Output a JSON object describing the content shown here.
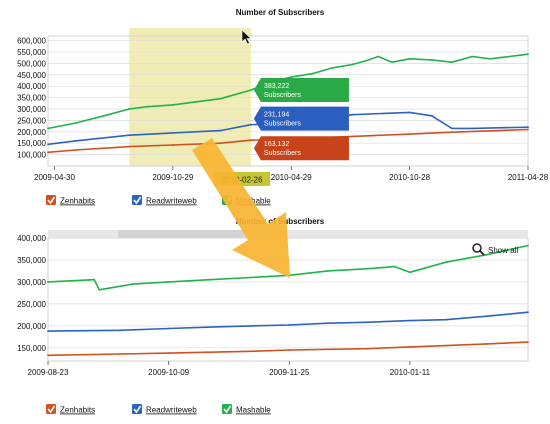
{
  "colors": {
    "Zenhabits": "#d2501f",
    "Readwriteweb": "#2a63c2",
    "Mashable": "#21b24a",
    "selection": "#ede9a8",
    "flag": "#c5c630",
    "arrow": "#f8b431",
    "tooltip_green": "#2aaa46",
    "tooltip_blue": "#2a5fbf",
    "tooltip_red": "#c8421a"
  },
  "chart_data": [
    {
      "type": "line",
      "title": "Number of Subscribers",
      "xlabel": "",
      "ylabel": "",
      "x_range": [
        "2009-04-20",
        "2011-04-28"
      ],
      "ylim": [
        50000,
        620000
      ],
      "y_ticks": [
        "100,000",
        "150,000",
        "200,000",
        "250,000",
        "300,000",
        "350,000",
        "400,000",
        "450,000",
        "500,000",
        "550,000",
        "600,000"
      ],
      "x_ticks": [
        "2009-04-30",
        "2009-10-29",
        "2010-10-28",
        "2011-04-28"
      ],
      "x_ticks_partially_hidden": [
        "2010-04-29"
      ],
      "grid": "horizontal",
      "selection_range": [
        "2009-08-23",
        "2010-02-26"
      ],
      "hover_date": "2010-02-26",
      "tooltips": [
        {
          "series": "Mashable",
          "value": "383,222",
          "label": "Subscribers"
        },
        {
          "series": "Readwriteweb",
          "value": "231,194",
          "label": "Subscribers"
        },
        {
          "series": "Zenhabits",
          "value": "163,132",
          "label": "Subscribers"
        }
      ],
      "series": [
        {
          "name": "Mashable",
          "x": [
            "2009-04-20",
            "2009-06-01",
            "2009-07-15",
            "2009-08-23",
            "2009-09-20",
            "2009-10-29",
            "2009-12-01",
            "2010-01-10",
            "2010-02-26",
            "2010-03-30",
            "2010-04-29",
            "2010-06-01",
            "2010-07-01",
            "2010-08-01",
            "2010-08-20",
            "2010-09-10",
            "2010-10-01",
            "2010-10-28",
            "2010-12-01",
            "2011-01-01",
            "2011-02-01",
            "2011-03-01",
            "2011-04-28"
          ],
          "values": [
            215000,
            238000,
            270000,
            300000,
            310000,
            318000,
            330000,
            345000,
            383000,
            420000,
            440000,
            455000,
            480000,
            495000,
            510000,
            530000,
            505000,
            520000,
            515000,
            505000,
            530000,
            520000,
            540000
          ]
        },
        {
          "name": "Readwriteweb",
          "x": [
            "2009-04-20",
            "2009-06-01",
            "2009-08-23",
            "2009-10-29",
            "2010-01-10",
            "2010-02-26",
            "2010-04-29",
            "2010-06-01",
            "2010-08-01",
            "2010-10-28",
            "2010-12-01",
            "2011-01-01",
            "2011-02-01",
            "2011-04-28"
          ],
          "values": [
            145000,
            160000,
            185000,
            195000,
            205000,
            231000,
            240000,
            255000,
            275000,
            285000,
            270000,
            215000,
            215000,
            220000
          ]
        },
        {
          "name": "Zenhabits",
          "x": [
            "2009-04-20",
            "2009-06-01",
            "2009-08-23",
            "2009-10-29",
            "2010-01-10",
            "2010-02-26",
            "2010-04-29",
            "2010-08-01",
            "2010-10-28",
            "2011-01-01",
            "2011-04-28"
          ],
          "values": [
            110000,
            120000,
            135000,
            142000,
            150000,
            163000,
            168000,
            180000,
            190000,
            198000,
            210000
          ]
        }
      ]
    },
    {
      "type": "line",
      "title": "Number of Subscribers",
      "xlabel": "",
      "ylabel": "",
      "x_range": [
        "2009-08-23",
        "2010-02-26"
      ],
      "ylim": [
        120000,
        400000
      ],
      "y_ticks": [
        "150,000",
        "200,000",
        "250,000",
        "300,000",
        "350,000",
        "400,000"
      ],
      "x_ticks": [
        "2009-08-23",
        "2009-10-09",
        "2009-11-25",
        "2010-01-11"
      ],
      "grid": "horizontal",
      "show_all_label": "Show all",
      "series": [
        {
          "name": "Mashable",
          "x": [
            "2009-08-23",
            "2009-09-10",
            "2009-09-12",
            "2009-09-25",
            "2009-10-09",
            "2009-10-25",
            "2009-11-10",
            "2009-11-25",
            "2009-12-10",
            "2009-12-25",
            "2010-01-05",
            "2010-01-11",
            "2010-01-25",
            "2010-02-10",
            "2010-02-26"
          ],
          "values": [
            300000,
            305000,
            282000,
            295000,
            300000,
            305000,
            310000,
            315000,
            325000,
            330000,
            335000,
            322000,
            345000,
            362000,
            383000
          ]
        },
        {
          "name": "Readwriteweb",
          "x": [
            "2009-08-23",
            "2009-09-20",
            "2009-10-09",
            "2009-10-30",
            "2009-11-10",
            "2009-11-25",
            "2009-12-10",
            "2009-12-25",
            "2010-01-11",
            "2010-01-25",
            "2010-02-10",
            "2010-02-26"
          ],
          "values": [
            188000,
            190000,
            194000,
            198000,
            200000,
            202000,
            206000,
            208000,
            212000,
            214000,
            222000,
            231000
          ]
        },
        {
          "name": "Zenhabits",
          "x": [
            "2009-08-23",
            "2009-09-20",
            "2009-10-09",
            "2009-11-10",
            "2009-11-25",
            "2009-12-25",
            "2010-01-11",
            "2010-01-25",
            "2010-02-10",
            "2010-02-26"
          ],
          "values": [
            133000,
            136000,
            138000,
            142000,
            145000,
            148000,
            152000,
            155000,
            159000,
            163000
          ]
        }
      ]
    }
  ],
  "legend": [
    {
      "name": "Zenhabits",
      "checked": true
    },
    {
      "name": "Readwriteweb",
      "checked": true
    },
    {
      "name": "Mashable",
      "checked": true
    }
  ]
}
